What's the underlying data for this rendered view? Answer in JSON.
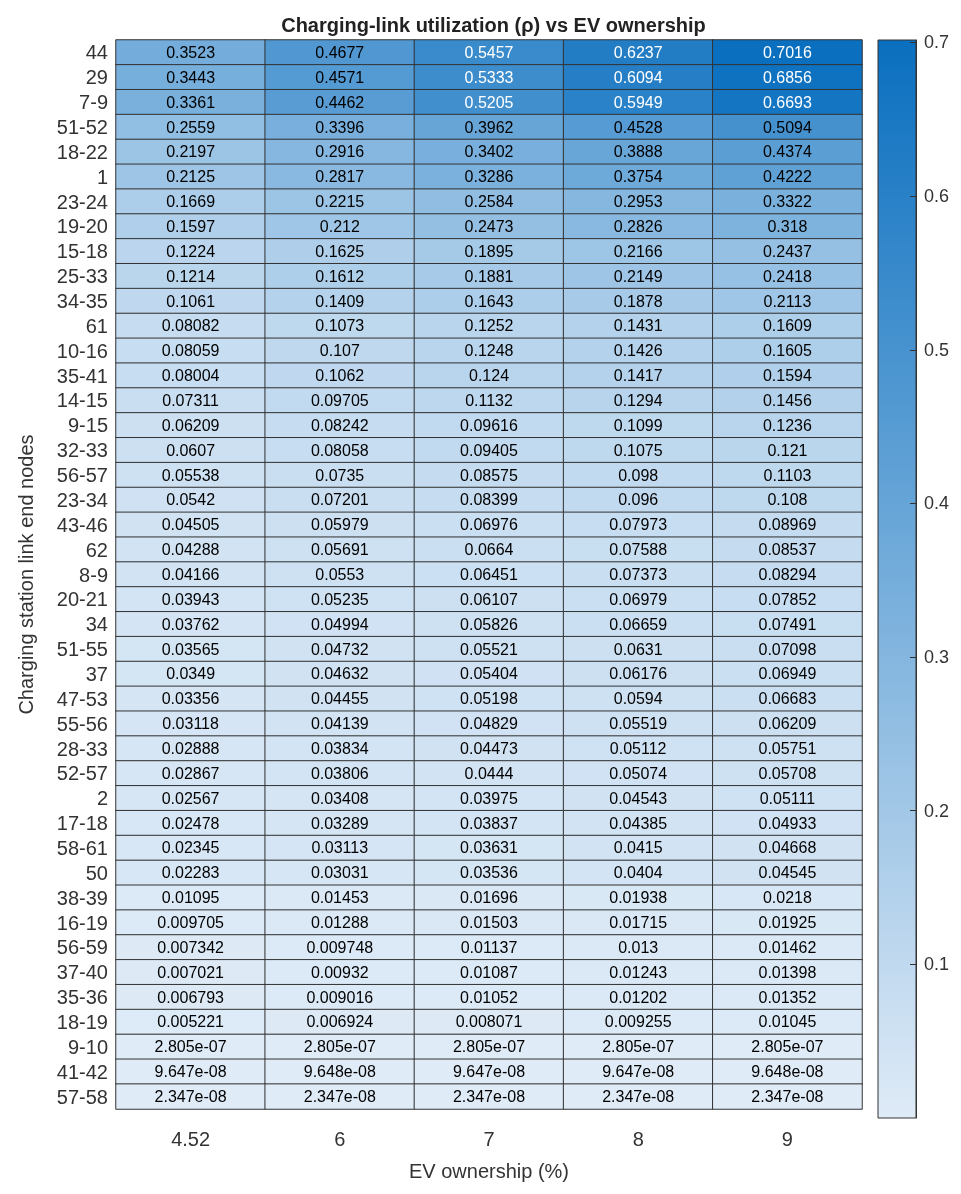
{
  "chart_data": {
    "type": "heatmap",
    "title": "Charging-link utilization (ρ) vs EV ownership",
    "xlabel": "EV ownership (%)",
    "ylabel": "Charging station link end nodes",
    "categories": [
      "4.52",
      "6",
      "7",
      "8",
      "9"
    ],
    "y_categories": [
      "44",
      "29",
      "7-9",
      "51-52",
      "18-22",
      "1",
      "23-24",
      "19-20",
      "15-18",
      "25-33",
      "34-35",
      "61",
      "10-16",
      "35-41",
      "14-15",
      "9-15",
      "32-33",
      "56-57",
      "23-34",
      "43-46",
      "62",
      "8-9",
      "20-21",
      "34",
      "51-55",
      "37",
      "47-53",
      "55-56",
      "28-33",
      "52-57",
      "2",
      "17-18",
      "58-61",
      "50",
      "38-39",
      "16-19",
      "56-59",
      "37-40",
      "35-36",
      "18-19",
      "9-10",
      "41-42",
      "57-58"
    ],
    "cells": [
      [
        0.3523,
        0.4677,
        0.5457,
        0.6237,
        0.7016
      ],
      [
        0.3443,
        0.4571,
        0.5333,
        0.6094,
        0.6856
      ],
      [
        0.3361,
        0.4462,
        0.5205,
        0.5949,
        0.6693
      ],
      [
        0.2559,
        0.3396,
        0.3962,
        0.4528,
        0.5094
      ],
      [
        0.2197,
        0.2916,
        0.3402,
        0.3888,
        0.4374
      ],
      [
        0.2125,
        0.2817,
        0.3286,
        0.3754,
        0.4222
      ],
      [
        0.1669,
        0.2215,
        0.2584,
        0.2953,
        0.3322
      ],
      [
        0.1597,
        0.212,
        0.2473,
        0.2826,
        0.318
      ],
      [
        0.1224,
        0.1625,
        0.1895,
        0.2166,
        0.2437
      ],
      [
        0.1214,
        0.1612,
        0.1881,
        0.2149,
        0.2418
      ],
      [
        0.1061,
        0.1409,
        0.1643,
        0.1878,
        0.2113
      ],
      [
        0.08082,
        0.1073,
        0.1252,
        0.1431,
        0.1609
      ],
      [
        0.08059,
        0.107,
        0.1248,
        0.1426,
        0.1605
      ],
      [
        0.08004,
        0.1062,
        0.124,
        0.1417,
        0.1594
      ],
      [
        0.07311,
        0.09705,
        0.1132,
        0.1294,
        0.1456
      ],
      [
        0.06209,
        0.08242,
        0.09616,
        0.1099,
        0.1236
      ],
      [
        0.0607,
        0.08058,
        0.09405,
        0.1075,
        0.121
      ],
      [
        0.05538,
        0.0735,
        0.08575,
        0.098,
        0.1103
      ],
      [
        0.0542,
        0.07201,
        0.08399,
        0.096,
        0.108
      ],
      [
        0.04505,
        0.05979,
        0.06976,
        0.07973,
        0.08969
      ],
      [
        0.04288,
        0.05691,
        0.0664,
        0.07588,
        0.08537
      ],
      [
        0.04166,
        0.0553,
        0.06451,
        0.07373,
        0.08294
      ],
      [
        0.03943,
        0.05235,
        0.06107,
        0.06979,
        0.07852
      ],
      [
        0.03762,
        0.04994,
        0.05826,
        0.06659,
        0.07491
      ],
      [
        0.03565,
        0.04732,
        0.05521,
        0.0631,
        0.07098
      ],
      [
        0.0349,
        0.04632,
        0.05404,
        0.06176,
        0.06949
      ],
      [
        0.03356,
        0.04455,
        0.05198,
        0.0594,
        0.06683
      ],
      [
        0.03118,
        0.04139,
        0.04829,
        0.05519,
        0.06209
      ],
      [
        0.02888,
        0.03834,
        0.04473,
        0.05112,
        0.05751
      ],
      [
        0.02867,
        0.03806,
        0.0444,
        0.05074,
        0.05708
      ],
      [
        0.02567,
        0.03408,
        0.03975,
        0.04543,
        0.05111
      ],
      [
        0.02478,
        0.03289,
        0.03837,
        0.04385,
        0.04933
      ],
      [
        0.02345,
        0.03113,
        0.03631,
        0.0415,
        0.04668
      ],
      [
        0.02283,
        0.03031,
        0.03536,
        0.0404,
        0.04545
      ],
      [
        0.01095,
        0.01453,
        0.01696,
        0.01938,
        0.0218
      ],
      [
        0.009705,
        0.01288,
        0.01503,
        0.01715,
        0.01925
      ],
      [
        0.007342,
        0.009748,
        0.01137,
        0.013,
        0.01462
      ],
      [
        0.007021,
        0.00932,
        0.01087,
        0.01243,
        0.01398
      ],
      [
        0.006793,
        0.009016,
        0.01052,
        0.01202,
        0.01352
      ],
      [
        0.005221,
        0.006924,
        0.008071,
        0.009255,
        0.01045
      ],
      [
        2.805e-07,
        2.805e-07,
        2.805e-07,
        2.805e-07,
        2.805e-07
      ],
      [
        9.647e-08,
        9.648e-08,
        9.647e-08,
        9.647e-08,
        9.648e-08
      ],
      [
        2.347e-08,
        2.347e-08,
        2.347e-08,
        2.347e-08,
        2.347e-08
      ]
    ],
    "cell_labels": [
      [
        "0.3523",
        "0.4677",
        "0.5457",
        "0.6237",
        "0.7016"
      ],
      [
        "0.3443",
        "0.4571",
        "0.5333",
        "0.6094",
        "0.6856"
      ],
      [
        "0.3361",
        "0.4462",
        "0.5205",
        "0.5949",
        "0.6693"
      ],
      [
        "0.2559",
        "0.3396",
        "0.3962",
        "0.4528",
        "0.5094"
      ],
      [
        "0.2197",
        "0.2916",
        "0.3402",
        "0.3888",
        "0.4374"
      ],
      [
        "0.2125",
        "0.2817",
        "0.3286",
        "0.3754",
        "0.4222"
      ],
      [
        "0.1669",
        "0.2215",
        "0.2584",
        "0.2953",
        "0.3322"
      ],
      [
        "0.1597",
        "0.212",
        "0.2473",
        "0.2826",
        "0.318"
      ],
      [
        "0.1224",
        "0.1625",
        "0.1895",
        "0.2166",
        "0.2437"
      ],
      [
        "0.1214",
        "0.1612",
        "0.1881",
        "0.2149",
        "0.2418"
      ],
      [
        "0.1061",
        "0.1409",
        "0.1643",
        "0.1878",
        "0.2113"
      ],
      [
        "0.08082",
        "0.1073",
        "0.1252",
        "0.1431",
        "0.1609"
      ],
      [
        "0.08059",
        "0.107",
        "0.1248",
        "0.1426",
        "0.1605"
      ],
      [
        "0.08004",
        "0.1062",
        "0.124",
        "0.1417",
        "0.1594"
      ],
      [
        "0.07311",
        "0.09705",
        "0.1132",
        "0.1294",
        "0.1456"
      ],
      [
        "0.06209",
        "0.08242",
        "0.09616",
        "0.1099",
        "0.1236"
      ],
      [
        "0.0607",
        "0.08058",
        "0.09405",
        "0.1075",
        "0.121"
      ],
      [
        "0.05538",
        "0.0735",
        "0.08575",
        "0.098",
        "0.1103"
      ],
      [
        "0.0542",
        "0.07201",
        "0.08399",
        "0.096",
        "0.108"
      ],
      [
        "0.04505",
        "0.05979",
        "0.06976",
        "0.07973",
        "0.08969"
      ],
      [
        "0.04288",
        "0.05691",
        "0.0664",
        "0.07588",
        "0.08537"
      ],
      [
        "0.04166",
        "0.0553",
        "0.06451",
        "0.07373",
        "0.08294"
      ],
      [
        "0.03943",
        "0.05235",
        "0.06107",
        "0.06979",
        "0.07852"
      ],
      [
        "0.03762",
        "0.04994",
        "0.05826",
        "0.06659",
        "0.07491"
      ],
      [
        "0.03565",
        "0.04732",
        "0.05521",
        "0.0631",
        "0.07098"
      ],
      [
        "0.0349",
        "0.04632",
        "0.05404",
        "0.06176",
        "0.06949"
      ],
      [
        "0.03356",
        "0.04455",
        "0.05198",
        "0.0594",
        "0.06683"
      ],
      [
        "0.03118",
        "0.04139",
        "0.04829",
        "0.05519",
        "0.06209"
      ],
      [
        "0.02888",
        "0.03834",
        "0.04473",
        "0.05112",
        "0.05751"
      ],
      [
        "0.02867",
        "0.03806",
        "0.0444",
        "0.05074",
        "0.05708"
      ],
      [
        "0.02567",
        "0.03408",
        "0.03975",
        "0.04543",
        "0.05111"
      ],
      [
        "0.02478",
        "0.03289",
        "0.03837",
        "0.04385",
        "0.04933"
      ],
      [
        "0.02345",
        "0.03113",
        "0.03631",
        "0.0415",
        "0.04668"
      ],
      [
        "0.02283",
        "0.03031",
        "0.03536",
        "0.0404",
        "0.04545"
      ],
      [
        "0.01095",
        "0.01453",
        "0.01696",
        "0.01938",
        "0.0218"
      ],
      [
        "0.009705",
        "0.01288",
        "0.01503",
        "0.01715",
        "0.01925"
      ],
      [
        "0.007342",
        "0.009748",
        "0.01137",
        "0.013",
        "0.01462"
      ],
      [
        "0.007021",
        "0.00932",
        "0.01087",
        "0.01243",
        "0.01398"
      ],
      [
        "0.006793",
        "0.009016",
        "0.01052",
        "0.01202",
        "0.01352"
      ],
      [
        "0.005221",
        "0.006924",
        "0.008071",
        "0.009255",
        "0.01045"
      ],
      [
        "2.805e-07",
        "2.805e-07",
        "2.805e-07",
        "2.805e-07",
        "2.805e-07"
      ],
      [
        "9.647e-08",
        "9.648e-08",
        "9.647e-08",
        "9.647e-08",
        "9.648e-08"
      ],
      [
        "2.347e-08",
        "2.347e-08",
        "2.347e-08",
        "2.347e-08",
        "2.347e-08"
      ]
    ],
    "clim": [
      2.347e-08,
      0.7016
    ],
    "cticks": [
      0.1,
      0.2,
      0.3,
      0.4,
      0.5,
      0.6,
      0.7
    ]
  }
}
